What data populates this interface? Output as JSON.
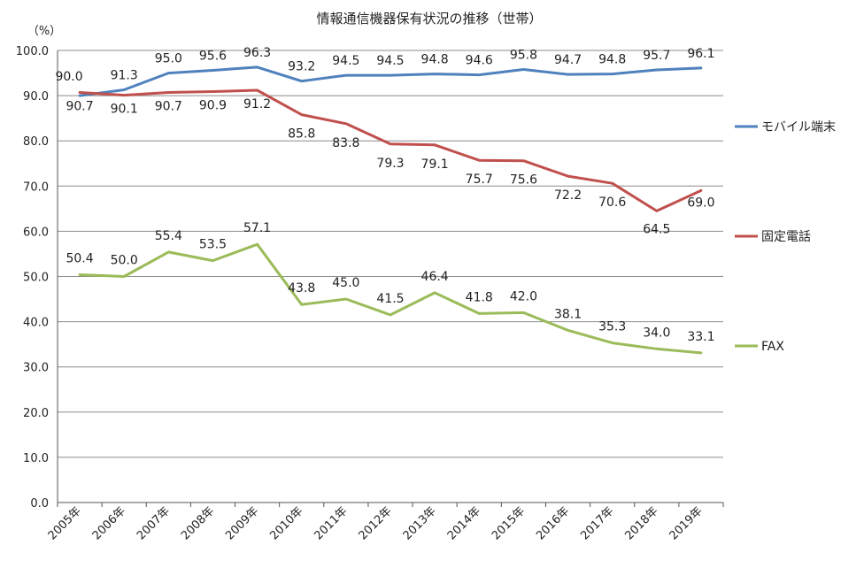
{
  "chart_data": {
    "type": "line",
    "title": "情報通信機器保有状況の推移（世帯）",
    "ylabel": "（%）",
    "xlabel": "",
    "ylim": [
      0,
      100
    ],
    "yticks": [
      "0.0",
      "10.0",
      "20.0",
      "30.0",
      "40.0",
      "50.0",
      "60.0",
      "70.0",
      "80.0",
      "90.0",
      "100.0"
    ],
    "ytick_values": [
      0,
      10,
      20,
      30,
      40,
      50,
      60,
      70,
      80,
      90,
      100
    ],
    "categories": [
      "2005年",
      "2006年",
      "2007年",
      "2008年",
      "2009年",
      "2010年",
      "2011年",
      "2012年",
      "2013年",
      "2014年",
      "2015年",
      "2016年",
      "2017年",
      "2018年",
      "2019年"
    ],
    "grid": true,
    "legend_position": "right",
    "series": [
      {
        "name": "モバイル端末",
        "color": "#4f81bd",
        "values": [
          90.0,
          91.3,
          95.0,
          95.6,
          96.3,
          93.2,
          94.5,
          94.5,
          94.8,
          94.6,
          95.8,
          94.7,
          94.8,
          95.7,
          96.1
        ],
        "labels": [
          "90.0",
          "91.3",
          "95.0",
          "95.6",
          "96.3",
          "93.2",
          "94.5",
          "94.5",
          "94.8",
          "94.6",
          "95.8",
          "94.7",
          "94.8",
          "95.7",
          "96.1"
        ]
      },
      {
        "name": "固定電話",
        "color": "#c0504d",
        "values": [
          90.7,
          90.1,
          90.7,
          90.9,
          91.2,
          85.8,
          83.8,
          79.3,
          79.1,
          75.7,
          75.6,
          72.2,
          70.6,
          64.5,
          69.0
        ],
        "labels": [
          "90.7",
          "90.1",
          "90.7",
          "90.9",
          "91.2",
          "85.8",
          "83.8",
          "79.3",
          "79.1",
          "75.7",
          "75.6",
          "72.2",
          "70.6",
          "64.5",
          "69.0"
        ]
      },
      {
        "name": "FAX",
        "color": "#9bbb59",
        "values": [
          50.4,
          50.0,
          55.4,
          53.5,
          57.1,
          43.8,
          45.0,
          41.5,
          46.4,
          41.8,
          42.0,
          38.1,
          35.3,
          34.0,
          33.1
        ],
        "labels": [
          "50.4",
          "50.0",
          "55.4",
          "53.5",
          "57.1",
          "43.8",
          "45.0",
          "41.5",
          "46.4",
          "41.8",
          "42.0",
          "38.1",
          "35.3",
          "34.0",
          "33.1"
        ]
      }
    ]
  }
}
